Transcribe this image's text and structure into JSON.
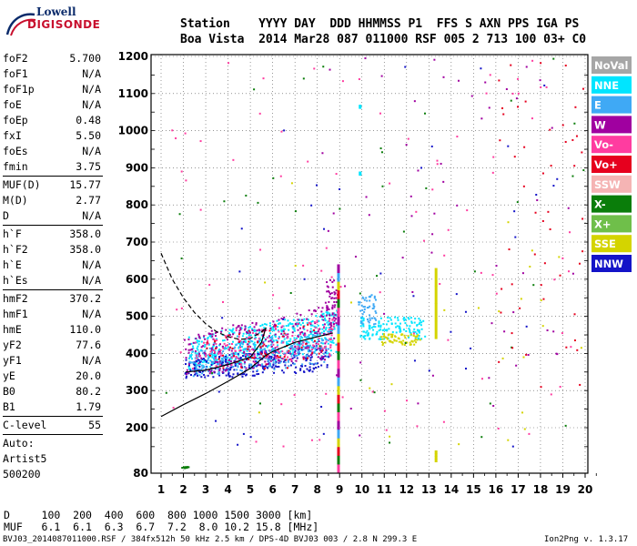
{
  "logo": {
    "line1": "Lowell",
    "line2": "DIGISONDE"
  },
  "header": {
    "row1": "Station    YYYY DAY  DDD HHMMSS P1  FFS S AXN PPS IGA PS",
    "row2": "Boa Vista  2014 Mar28 087 011000 RSF 005 2 713 100 03+ C0"
  },
  "params_group1": [
    {
      "k": "foF2",
      "v": "5.700"
    },
    {
      "k": "foF1",
      "v": "N/A"
    },
    {
      "k": "foF1p",
      "v": "N/A"
    },
    {
      "k": "foE",
      "v": "N/A"
    },
    {
      "k": "foEp",
      "v": "0.48"
    },
    {
      "k": "fxI",
      "v": "5.50"
    },
    {
      "k": "foEs",
      "v": "N/A"
    },
    {
      "k": "fmin",
      "v": "3.75"
    }
  ],
  "params_group2": [
    {
      "k": "MUF(D)",
      "v": "15.77"
    },
    {
      "k": "M(D)",
      "v": "2.77"
    },
    {
      "k": "D",
      "v": "N/A"
    }
  ],
  "params_group3": [
    {
      "k": "h`F",
      "v": "358.0"
    },
    {
      "k": "h`F2",
      "v": "358.0"
    },
    {
      "k": "h`E",
      "v": "N/A"
    },
    {
      "k": "h`Es",
      "v": "N/A"
    }
  ],
  "params_group4": [
    {
      "k": "hmF2",
      "v": "370.2"
    },
    {
      "k": "hmF1",
      "v": "N/A"
    },
    {
      "k": "hmE",
      "v": "110.0"
    },
    {
      "k": "yF2",
      "v": "77.6"
    },
    {
      "k": "yF1",
      "v": "N/A"
    },
    {
      "k": "yE",
      "v": "20.0"
    },
    {
      "k": "B0",
      "v": "80.2"
    },
    {
      "k": "B1",
      "v": "1.79"
    }
  ],
  "params_group5": [
    {
      "k": "C-level",
      "v": "55"
    }
  ],
  "autoscaling": {
    "line1": "Auto:",
    "line2": "Artist5",
    "line3": "500200"
  },
  "footer": {
    "d_row": "D     100  200  400  600  800 1000 1500 3000 [km]",
    "muf_row": "MUF   6.1  6.1  6.3  6.7  7.2  8.0 10.2 15.8 [MHz]",
    "file_info": "BVJ03_2014087011000.RSF / 384fx512h 50 kHz 2.5 km / DPS-4D BVJ03 003 / 2.8 N 299.3 E",
    "version": "Ion2Png v. 1.3.17"
  },
  "chart_data": {
    "type": "scatter",
    "x_ticks": [
      "1",
      "2",
      "3",
      "4",
      "5",
      "6",
      "7",
      "8",
      "9",
      "10",
      "11",
      "12",
      "13",
      "14",
      "15",
      "16",
      "17",
      "18",
      "19",
      "20"
    ],
    "y_ticks": [
      "80",
      "200",
      "300",
      "400",
      "500",
      "600",
      "700",
      "800",
      "900",
      "1000",
      "1100",
      "1200"
    ],
    "xlim": [
      1,
      20
    ],
    "ylim": [
      80,
      1200
    ],
    "grid": true,
    "legend_placement": "right",
    "legend": [
      {
        "label": "NoVal",
        "color": "#a6a6a6"
      },
      {
        "label": "NNE",
        "color": "#00e5ff"
      },
      {
        "label": "E",
        "color": "#3fa9f5"
      },
      {
        "label": "W",
        "color": "#a000a0"
      },
      {
        "label": "Vo-",
        "color": "#ff3ca0"
      },
      {
        "label": "Vo+",
        "color": "#e6001e"
      },
      {
        "label": "SSW",
        "color": "#f5b4b4"
      },
      {
        "label": "X-",
        "color": "#0a7d0a"
      },
      {
        "label": "X+",
        "color": "#6fbf4a"
      },
      {
        "label": "SSE",
        "color": "#d4d400"
      },
      {
        "label": "NNW",
        "color": "#1414c8"
      }
    ],
    "clusters": [
      {
        "color": "#00e5ff",
        "x": [
          2.2,
          8.9
        ],
        "y": [
          360,
          520
        ],
        "n": 520
      },
      {
        "color": "#1414c8",
        "x": [
          2.0,
          8.5
        ],
        "y": [
          330,
          430
        ],
        "n": 260
      },
      {
        "color": "#3fa9f5",
        "x": [
          2.2,
          8.6
        ],
        "y": [
          340,
          470
        ],
        "n": 240
      },
      {
        "color": "#a000a0",
        "x": [
          2.0,
          8.9
        ],
        "y": [
          340,
          540
        ],
        "n": 260
      },
      {
        "color": "#ff3ca0",
        "x": [
          2.5,
          8.7
        ],
        "y": [
          360,
          500
        ],
        "n": 140
      },
      {
        "color": "#e6001e",
        "x": [
          3.0,
          8.2
        ],
        "y": [
          360,
          480
        ],
        "n": 60
      },
      {
        "color": "#00e5ff",
        "x": [
          9.9,
          12.8
        ],
        "y": [
          440,
          500
        ],
        "n": 140
      },
      {
        "color": "#d4d400",
        "x": [
          10.8,
          12.6
        ],
        "y": [
          425,
          455
        ],
        "n": 70
      },
      {
        "color": "#3fa9f5",
        "x": [
          9.8,
          10.6
        ],
        "y": [
          480,
          560
        ],
        "n": 50
      },
      {
        "color": "#a000a0",
        "x": [
          8.3,
          8.9
        ],
        "y": [
          480,
          600
        ],
        "n": 50
      },
      {
        "color": "#ff3ca0",
        "x": [
          1,
          20
        ],
        "y": [
          150,
          1200
        ],
        "n": 90
      },
      {
        "color": "#a000a0",
        "x": [
          8,
          20
        ],
        "y": [
          150,
          1200
        ],
        "n": 60
      },
      {
        "color": "#0a7d0a",
        "x": [
          1,
          20
        ],
        "y": [
          150,
          1200
        ],
        "n": 40
      },
      {
        "color": "#1414c8",
        "x": [
          3,
          20
        ],
        "y": [
          150,
          1200
        ],
        "n": 40
      },
      {
        "color": "#e6001e",
        "x": [
          16,
          20
        ],
        "y": [
          300,
          1200
        ],
        "n": 50
      },
      {
        "color": "#d4d400",
        "x": [
          5,
          20
        ],
        "y": [
          150,
          900
        ],
        "n": 25
      },
      {
        "color": "#0a7d0a",
        "x": [
          1.9,
          2.2
        ],
        "y": [
          95,
          100
        ],
        "n": 12
      }
    ],
    "vertical_traces": [
      {
        "x": 8.93,
        "y": [
          80,
          640
        ],
        "colors": [
          "#a000a0",
          "#3fa9f5",
          "#d4d400",
          "#e6001e",
          "#0a7d0a",
          "#ff3ca0"
        ]
      },
      {
        "x": 13.3,
        "y": [
          440,
          630
        ],
        "colors": [
          "#d4d400"
        ]
      },
      {
        "x": 13.3,
        "y": [
          110,
          140
        ],
        "colors": [
          "#d4d400"
        ]
      },
      {
        "x": 9.9,
        "y": [
          1060,
          1070
        ],
        "colors": [
          "#00e5ff"
        ]
      },
      {
        "x": 9.9,
        "y": [
          880,
          890
        ],
        "colors": [
          "#00e5ff"
        ]
      }
    ],
    "profile_solid": {
      "x": [
        1,
        2,
        3,
        4,
        5,
        5.7,
        6,
        7,
        8,
        8.7
      ],
      "y": [
        230,
        262,
        292,
        325,
        360,
        395,
        405,
        430,
        445,
        455
      ]
    },
    "profile_dashed": {
      "x": [
        1,
        1.5,
        2,
        2.5,
        3,
        3.5,
        4,
        4.5,
        5,
        5.5,
        5.7
      ],
      "y": [
        670,
        600,
        550,
        510,
        480,
        458,
        445,
        438,
        440,
        458,
        470
      ]
    },
    "trace_curve": {
      "x": [
        2.1,
        3,
        4,
        5,
        5.5,
        5.7
      ],
      "y": [
        350,
        355,
        370,
        390,
        430,
        470
      ]
    }
  }
}
